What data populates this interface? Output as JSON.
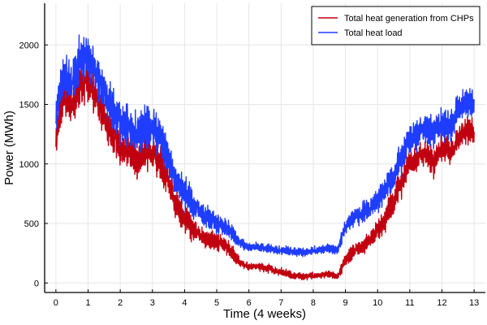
{
  "chart_data": {
    "type": "line",
    "title": "",
    "xlabel": "Time (4 weeks)",
    "ylabel": "Power (MWh)",
    "xlim": [
      -0.35,
      13.35
    ],
    "ylim": [
      -80,
      2350
    ],
    "x_ticks": [
      0,
      1,
      2,
      3,
      4,
      5,
      6,
      7,
      8,
      9,
      10,
      11,
      12,
      13
    ],
    "y_ticks": [
      0,
      500,
      1000,
      1500,
      2000
    ],
    "grid": true,
    "legend_position": "top-right",
    "series": [
      {
        "name": "Total heat generation from CHPs",
        "color": "#c00010",
        "x": [
          0,
          0.25,
          0.5,
          0.75,
          1,
          1.25,
          1.5,
          1.75,
          2,
          2.25,
          2.5,
          2.75,
          3,
          3.25,
          3.5,
          3.75,
          4,
          4.25,
          4.5,
          4.75,
          5,
          5.25,
          5.5,
          5.75,
          6,
          6.25,
          6.5,
          6.75,
          7,
          7.25,
          7.5,
          7.75,
          8,
          8.25,
          8.5,
          8.75,
          9,
          9.25,
          9.5,
          9.75,
          10,
          10.25,
          10.5,
          10.75,
          11,
          11.25,
          11.5,
          11.75,
          12,
          12.25,
          12.5,
          12.75,
          13
        ],
        "y": [
          1200,
          1600,
          1500,
          1650,
          1700,
          1550,
          1400,
          1250,
          1150,
          1100,
          1050,
          1100,
          1100,
          1000,
          850,
          650,
          550,
          450,
          400,
          350,
          350,
          320,
          250,
          160,
          140,
          140,
          130,
          110,
          90,
          70,
          60,
          55,
          60,
          70,
          75,
          50,
          200,
          280,
          300,
          350,
          450,
          550,
          700,
          850,
          1000,
          1050,
          1100,
          1000,
          1150,
          1100,
          1200,
          1300,
          1250
        ],
        "amplitude": [
          150,
          180,
          200,
          220,
          200,
          180,
          200,
          180,
          170,
          170,
          180,
          170,
          160,
          160,
          150,
          140,
          130,
          120,
          110,
          100,
          90,
          80,
          60,
          40,
          40,
          40,
          40,
          40,
          40,
          40,
          30,
          30,
          30,
          30,
          30,
          30,
          60,
          80,
          90,
          90,
          100,
          120,
          130,
          130,
          120,
          120,
          120,
          120,
          130,
          140,
          140,
          130,
          120
        ]
      },
      {
        "name": "Total heat load",
        "color": "#1f3dff",
        "x": [
          0,
          0.25,
          0.5,
          0.75,
          1,
          1.25,
          1.5,
          1.75,
          2,
          2.25,
          2.5,
          2.75,
          3,
          3.25,
          3.5,
          3.75,
          4,
          4.25,
          4.5,
          4.75,
          5,
          5.25,
          5.5,
          5.75,
          6,
          6.25,
          6.5,
          6.75,
          7,
          7.25,
          7.5,
          7.75,
          8,
          8.25,
          8.5,
          8.75,
          9,
          9.25,
          9.5,
          9.75,
          10,
          10.25,
          10.5,
          10.75,
          11,
          11.25,
          11.5,
          11.75,
          12,
          12.25,
          12.5,
          12.75,
          13
        ],
        "y": [
          1400,
          1750,
          1700,
          1850,
          1900,
          1750,
          1600,
          1450,
          1350,
          1300,
          1250,
          1300,
          1300,
          1200,
          1050,
          850,
          750,
          650,
          600,
          550,
          500,
          480,
          420,
          330,
          300,
          300,
          290,
          280,
          270,
          270,
          260,
          260,
          270,
          280,
          290,
          270,
          480,
          560,
          580,
          620,
          700,
          780,
          900,
          1050,
          1200,
          1250,
          1300,
          1250,
          1350,
          1300,
          1450,
          1550,
          1500
        ],
        "amplitude": [
          170,
          200,
          220,
          240,
          230,
          200,
          220,
          200,
          190,
          190,
          200,
          190,
          180,
          180,
          170,
          160,
          150,
          140,
          130,
          120,
          100,
          90,
          70,
          50,
          45,
          45,
          45,
          45,
          45,
          45,
          40,
          40,
          40,
          40,
          40,
          40,
          70,
          90,
          100,
          100,
          110,
          130,
          150,
          150,
          140,
          140,
          140,
          140,
          150,
          160,
          160,
          150,
          140
        ]
      }
    ]
  }
}
